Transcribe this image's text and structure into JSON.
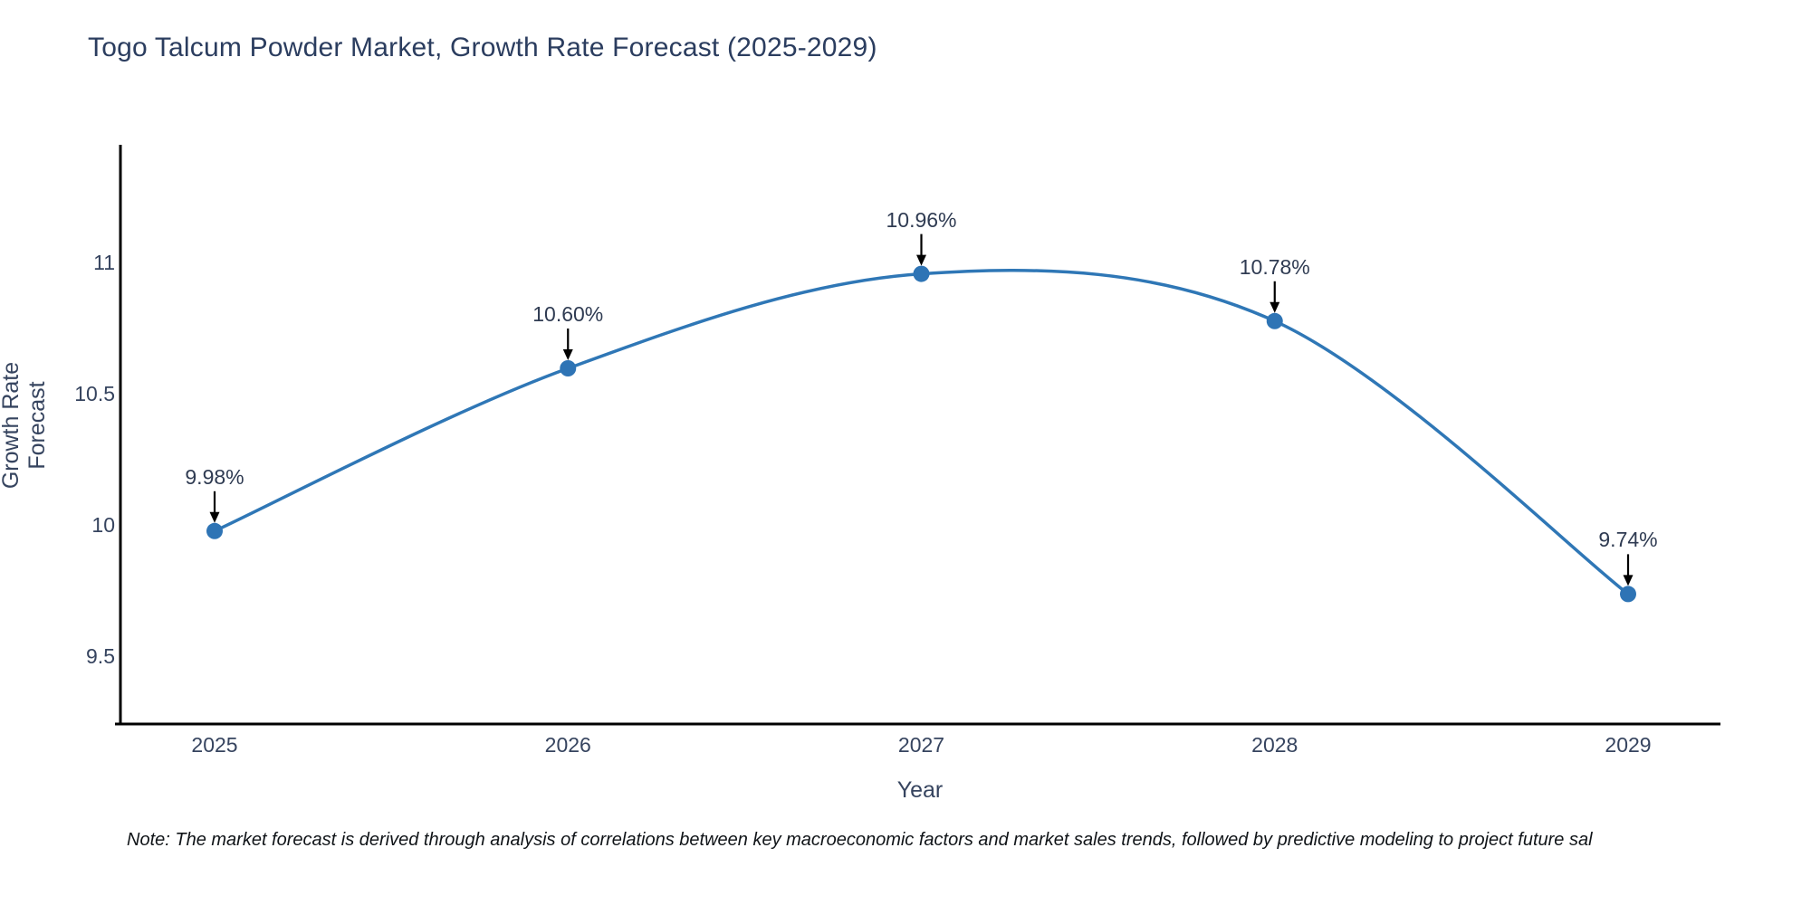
{
  "chart_data": {
    "type": "line",
    "curve": "spline",
    "title": "Togo Talcum Powder Market, Growth Rate Forecast (2025-2029)",
    "xlabel": "Year",
    "ylabel": "Growth Rate Forecast",
    "x": [
      2025,
      2026,
      2027,
      2028,
      2029
    ],
    "x_tick_labels": [
      "2025",
      "2026",
      "2027",
      "2028",
      "2029"
    ],
    "series": [
      {
        "name": "Growth Rate Forecast",
        "values": [
          9.98,
          10.6,
          10.96,
          10.78,
          9.74
        ]
      }
    ],
    "point_labels": [
      "9.98%",
      "10.60%",
      "10.96%",
      "10.78%",
      "9.74%"
    ],
    "yticks": [
      9.5,
      10,
      10.5,
      11
    ],
    "ytick_labels": [
      "9.5",
      "10",
      "10.5",
      "11"
    ],
    "ylim": [
      9.25,
      11.48
    ],
    "xlim": [
      2024.74,
      2029.27
    ],
    "grid": false,
    "legend": "none",
    "line_color": "#2f77b6",
    "marker_color": "#2e74b5",
    "axis_color": "#000000",
    "title_color": "#2b3d5f",
    "tick_color": "#36445f",
    "annotation_color": "#2f3b52",
    "arrow_color": "#000000"
  },
  "note": {
    "text": "Note: The market forecast is derived through analysis of correlations between key macroeconomic factors and market sales trends, followed by predictive modeling to project future sal"
  }
}
